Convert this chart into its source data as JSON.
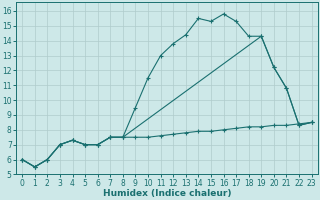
{
  "xlabel": "Humidex (Indice chaleur)",
  "bg_color": "#cde8e8",
  "grid_color": "#b0cccc",
  "line_color": "#1a7070",
  "xlim": [
    -0.5,
    23.5
  ],
  "ylim": [
    5.0,
    16.6
  ],
  "xticks": [
    0,
    1,
    2,
    3,
    4,
    5,
    6,
    7,
    8,
    9,
    10,
    11,
    12,
    13,
    14,
    15,
    16,
    17,
    18,
    19,
    20,
    21,
    22,
    23
  ],
  "yticks": [
    5,
    6,
    7,
    8,
    9,
    10,
    11,
    12,
    13,
    14,
    15,
    16
  ],
  "line1_x": [
    0,
    1,
    2,
    3,
    4,
    5,
    6,
    7,
    8,
    9,
    10,
    11,
    12,
    13,
    14,
    15,
    16,
    17,
    18,
    19,
    20,
    21,
    22,
    23
  ],
  "line1_y": [
    6.0,
    5.5,
    6.0,
    7.0,
    7.3,
    7.0,
    7.0,
    7.5,
    7.5,
    9.5,
    11.5,
    13.0,
    13.8,
    14.4,
    15.5,
    15.3,
    15.8,
    15.3,
    14.3,
    14.3,
    12.2,
    10.8,
    8.3,
    8.5
  ],
  "line2_x": [
    0,
    1,
    2,
    3,
    4,
    5,
    6,
    7,
    8,
    9,
    10,
    11,
    12,
    13,
    14,
    15,
    16,
    17,
    18,
    19,
    20,
    21,
    22,
    23
  ],
  "line2_y": [
    6.0,
    5.5,
    6.0,
    7.0,
    7.3,
    7.0,
    7.0,
    7.5,
    7.5,
    7.5,
    7.5,
    7.6,
    7.7,
    7.8,
    7.9,
    7.9,
    8.0,
    8.1,
    8.2,
    8.2,
    8.3,
    8.3,
    8.4,
    8.5
  ],
  "line3_x": [
    0,
    1,
    2,
    3,
    4,
    5,
    6,
    7,
    8,
    19,
    20,
    21,
    22,
    23
  ],
  "line3_y": [
    6.0,
    5.5,
    6.0,
    7.0,
    7.3,
    7.0,
    7.0,
    7.5,
    7.5,
    14.3,
    12.2,
    10.8,
    8.3,
    8.5
  ]
}
